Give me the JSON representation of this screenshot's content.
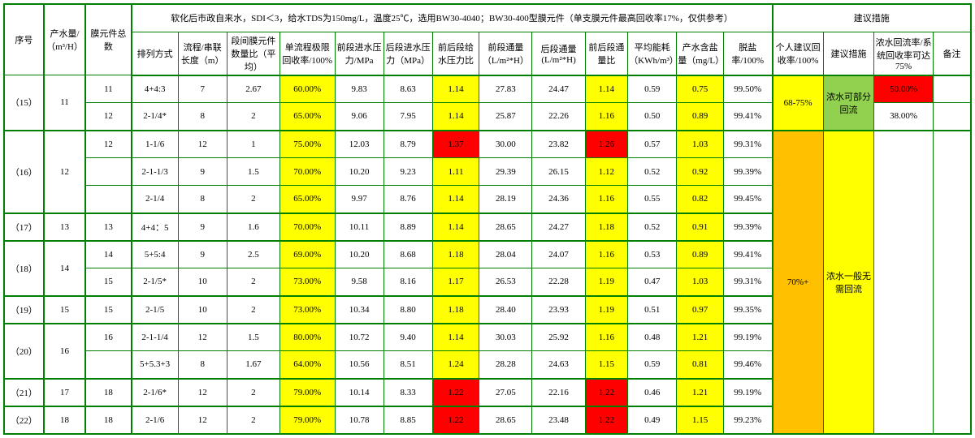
{
  "colors": {
    "border": "#008000",
    "yellow": "#ffff00",
    "red": "#ff0000",
    "green": "#92d050",
    "orange": "#ffc000",
    "white": "#ffffff",
    "text": "#000000"
  },
  "header": {
    "desc_title": "软化后市政自来水，SDI＜3，给水TDS为150mg/L，温度25℃，选用BW30-4040；BW30-400型膜元件（单支膜元件最高回收率17%，仅供参考）",
    "measures_title": "建议措施",
    "cols": {
      "c0": "序号",
      "c1": "产水量/（m³/H）",
      "c2": "膜元件总数",
      "c3": "排列方式",
      "c4": "流程/串联长度（m）",
      "c5": "段间膜元件数量比（平均）",
      "c6": "单流程极限回收率/100%",
      "c7": "前段进水压力/MPa",
      "c8": "后段进水压力（MPa）",
      "c9": "前后段给水压力比",
      "c10": "前段通量（L/m²*H）",
      "c11": "后段通量(L/m²*H)",
      "c12": "前后段通量比",
      "c13": "平均能耗（KWh/m³）",
      "c14": "产水含盐量（mg/L）",
      "c15": "脱盐率/100%",
      "c16": "个人建议回收率/100%",
      "c17": "建议措施",
      "c18": "浓水回流率/系统回收率可达75%",
      "c19": "备注"
    }
  },
  "rows": [
    {
      "seq": "（15）",
      "water": "11",
      "mem": "11",
      "arr": "4+4:3",
      "len": "7",
      "ratio": "2.67",
      "rec": "60.00%",
      "fp": "9.83",
      "bp": "8.63",
      "pr": "1.14",
      "ff": "27.83",
      "bf": "24.47",
      "fr": "1.14",
      "pw": "0.59",
      "tds": "0.75",
      "salt": "99.50%",
      "rrec": "50.00%"
    },
    {
      "mem": "12",
      "arr": "2-1/4*",
      "len": "8",
      "ratio": "2",
      "rec": "65.00%",
      "fp": "9.06",
      "bp": "7.95",
      "pr": "1.14",
      "ff": "25.87",
      "bf": "22.26",
      "fr": "1.16",
      "pw": "0.50",
      "tds": "0.89",
      "salt": "99.41%",
      "rrec": "38.00%"
    },
    {
      "seq": "（16）",
      "water": "12",
      "mem": "12",
      "arr": "1-1/6",
      "len": "12",
      "ratio": "1",
      "rec": "75.00%",
      "fp": "12.03",
      "bp": "8.79",
      "pr": "1.37",
      "pr_red": true,
      "ff": "30.00",
      "bf": "23.82",
      "fr": "1.26",
      "fr_red": true,
      "pw": "0.57",
      "tds": "1.03",
      "salt": "99.31%"
    },
    {
      "arr": "2-1-1/3",
      "len": "9",
      "ratio": "1.5",
      "rec": "70.00%",
      "fp": "10.20",
      "bp": "9.23",
      "pr": "1.11",
      "ff": "29.39",
      "bf": "26.15",
      "fr": "1.12",
      "pw": "0.52",
      "tds": "0.92",
      "salt": "99.39%"
    },
    {
      "arr": "2-1/4",
      "len": "8",
      "ratio": "2",
      "rec": "65.00%",
      "fp": "9.97",
      "bp": "8.76",
      "pr": "1.14",
      "ff": "28.19",
      "bf": "24.36",
      "fr": "1.16",
      "pw": "0.55",
      "tds": "0.82",
      "salt": "99.45%"
    },
    {
      "seq": "（17）",
      "water": "13",
      "mem": "13",
      "arr": "4+4：5",
      "len": "9",
      "ratio": "1.6",
      "rec": "70.00%",
      "fp": "10.11",
      "bp": "8.89",
      "pr": "1.14",
      "ff": "28.65",
      "bf": "24.27",
      "fr": "1.18",
      "pw": "0.52",
      "tds": "0.91",
      "salt": "99.39%"
    },
    {
      "seq": "（18）",
      "water": "14",
      "mem": "14",
      "arr": "5+5:4",
      "len": "9",
      "ratio": "2.5",
      "rec": "69.00%",
      "fp": "10.20",
      "bp": "8.68",
      "pr": "1.18",
      "ff": "28.04",
      "bf": "24.07",
      "fr": "1.16",
      "pw": "0.53",
      "tds": "0.89",
      "salt": "99.41%"
    },
    {
      "mem": "15",
      "arr": "2-1/5*",
      "len": "10",
      "ratio": "2",
      "rec": "73.00%",
      "fp": "9.58",
      "bp": "8.16",
      "pr": "1.17",
      "ff": "26.53",
      "bf": "22.28",
      "fr": "1.19",
      "pw": "0.47",
      "tds": "1.03",
      "salt": "99.31%"
    },
    {
      "seq": "（19）",
      "water": "15",
      "mem": "15",
      "arr": "2-1/5",
      "len": "10",
      "ratio": "2",
      "rec": "73.00%",
      "fp": "10.34",
      "bp": "8.80",
      "pr": "1.18",
      "ff": "28.40",
      "bf": "23.93",
      "fr": "1.19",
      "pw": "0.51",
      "tds": "0.97",
      "salt": "99.35%"
    },
    {
      "seq": "（20）",
      "water": "16",
      "mem": "16",
      "arr": "2-1-1/4",
      "len": "12",
      "ratio": "1.5",
      "rec": "80.00%",
      "fp": "10.72",
      "bp": "9.40",
      "pr": "1.14",
      "ff": "30.03",
      "bf": "25.92",
      "fr": "1.16",
      "pw": "0.48",
      "tds": "1.21",
      "salt": "99.19%"
    },
    {
      "arr": "5+5.3+3",
      "len": "8",
      "ratio": "1.67",
      "rec": "64.00%",
      "fp": "10.56",
      "bp": "8.51",
      "pr": "1.24",
      "ff": "28.28",
      "bf": "24.63",
      "fr": "1.15",
      "pw": "0.59",
      "tds": "0.81",
      "salt": "99.46%"
    },
    {
      "seq": "（21）",
      "water": "17",
      "mem": "18",
      "arr": "2-1/6*",
      "len": "12",
      "ratio": "2",
      "rec": "79.00%",
      "fp": "10.14",
      "bp": "8.33",
      "pr": "1.22",
      "pr_red": true,
      "ff": "27.05",
      "bf": "22.16",
      "fr": "1.22",
      "fr_red": true,
      "pw": "0.46",
      "tds": "1.21",
      "salt": "99.19%"
    },
    {
      "seq": "（22）",
      "water": "18",
      "mem": "18",
      "arr": "2-1/6",
      "len": "12",
      "ratio": "2",
      "rec": "79.00%",
      "fp": "10.78",
      "bp": "8.85",
      "pr": "1.22",
      "pr_red": true,
      "ff": "28.65",
      "bf": "23.48",
      "fr": "1.22",
      "fr_red": true,
      "pw": "0.49",
      "tds": "1.15",
      "salt": "99.23%"
    }
  ],
  "merges": {
    "g15_suggest_range": "68-75%",
    "g15_advice": "浓水可部分回流",
    "rest_suggest_range": "70%+",
    "rest_advice": "浓水一般无需回流"
  }
}
